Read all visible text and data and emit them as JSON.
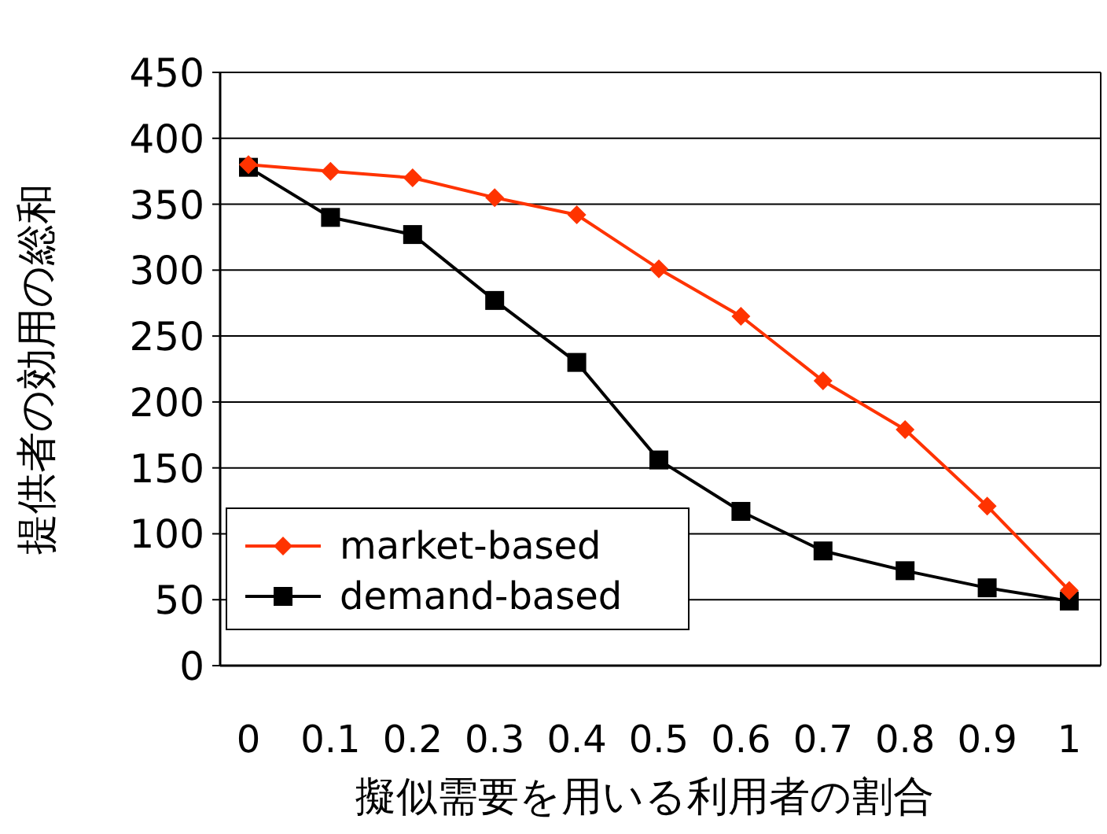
{
  "chart_data": {
    "type": "line",
    "xlabel": "擬似需要を用いる利用者の割合",
    "ylabel": "提供者の効用の総和",
    "categories": [
      "0",
      "0.1",
      "0.2",
      "0.3",
      "0.4",
      "0.5",
      "0.6",
      "0.7",
      "0.8",
      "0.9",
      "1"
    ],
    "series": [
      {
        "name": "market-based",
        "color": "#ff3300",
        "marker": "diamond",
        "values": [
          380,
          375,
          370,
          355,
          342,
          301,
          265,
          216,
          179,
          121,
          57
        ]
      },
      {
        "name": "demand-based",
        "color": "#000000",
        "marker": "square",
        "values": [
          378,
          340,
          327,
          277,
          230,
          156,
          117,
          87,
          72,
          59,
          49
        ]
      }
    ],
    "ylim": [
      0,
      450
    ],
    "yticks": [
      0,
      50,
      100,
      150,
      200,
      250,
      300,
      350,
      400,
      450
    ],
    "grid": "y",
    "legend": "bottom left"
  }
}
